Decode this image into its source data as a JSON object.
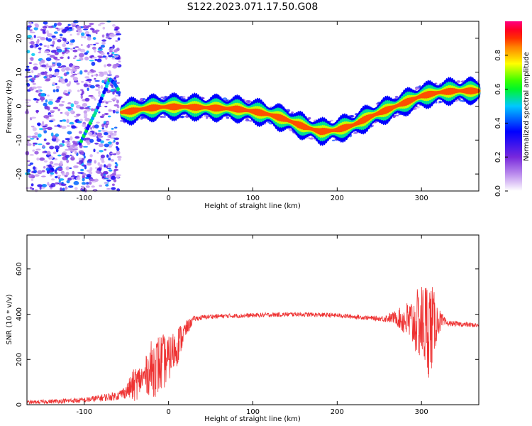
{
  "title": "S122.2023.071.17.50.G08",
  "chart_data": [
    {
      "type": "heatmap",
      "title": "S122.2023.071.17.50.G08",
      "xlabel": "Height of straight line (km)",
      "ylabel": "Frequency (Hz)",
      "xlim": [
        -168,
        368
      ],
      "ylim": [
        -25,
        25
      ],
      "x_ticks": [
        -100,
        0,
        100,
        200,
        300
      ],
      "y_ticks": [
        -20,
        -10,
        0,
        10,
        20
      ],
      "colorbar": {
        "label": "Normalized spectral amplitude",
        "range": [
          0,
          1
        ],
        "ticks": [
          0.0,
          0.2,
          0.4,
          0.6,
          0.8
        ],
        "colors": [
          "#ffffff",
          "#8a2be2",
          "#0000ff",
          "#00c8ff",
          "#00ff00",
          "#ffff00",
          "#ff8000",
          "#ff0000",
          "#ff0080"
        ]
      },
      "ridge": {
        "x": [
          -55,
          -45,
          -30,
          -10,
          0,
          20,
          50,
          80,
          100,
          120,
          140,
          160,
          180,
          200,
          220,
          240,
          260,
          280,
          300,
          320,
          340,
          368
        ],
        "y": [
          -1.8,
          -1.5,
          -0.8,
          -0.3,
          -0.2,
          -0.2,
          -0.5,
          -0.8,
          -1.5,
          -2.5,
          -4.0,
          -6.0,
          -7.5,
          -7.0,
          -5.5,
          -3.0,
          -1.0,
          1.0,
          3.0,
          4.0,
          4.5,
          4.5
        ]
      },
      "diagonal_track": {
        "x": [
          -105,
          -95,
          -85,
          -75,
          -70,
          -65,
          -60
        ],
        "y": [
          -11,
          -6,
          -1,
          5,
          8,
          7,
          5
        ]
      },
      "color_scale": "rainbow",
      "grid": false
    },
    {
      "type": "line",
      "xlabel": "Height of straight line (km)",
      "ylabel": "SNR (10 * v/v)",
      "xlim": [
        -168,
        368
      ],
      "ylim": [
        0,
        750
      ],
      "x_ticks": [
        -100,
        0,
        100,
        200,
        300
      ],
      "y_ticks": [
        0,
        200,
        400,
        600
      ],
      "color": "#ee3333",
      "series_envelope": {
        "x": [
          -168,
          -100,
          -60,
          -50,
          -40,
          -30,
          -20,
          -10,
          0,
          10,
          20,
          30,
          50,
          100,
          150,
          200,
          250,
          270,
          290,
          300,
          310,
          320,
          330,
          368
        ],
        "mean": [
          10,
          20,
          40,
          60,
          90,
          120,
          160,
          180,
          200,
          260,
          330,
          380,
          390,
          395,
          400,
          395,
          380,
          385,
          360,
          360,
          340,
          370,
          360,
          350
        ],
        "spread": [
          8,
          12,
          20,
          30,
          80,
          60,
          130,
          140,
          100,
          90,
          40,
          12,
          10,
          10,
          10,
          10,
          10,
          30,
          120,
          180,
          230,
          60,
          12,
          10
        ]
      },
      "grid": false
    }
  ]
}
